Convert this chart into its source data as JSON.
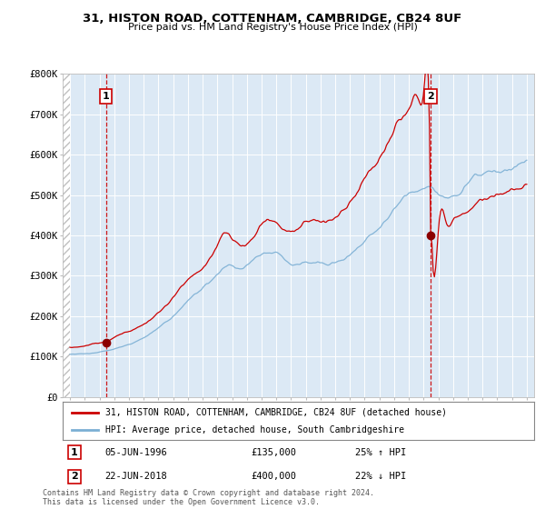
{
  "title_line1": "31, HISTON ROAD, COTTENHAM, CAMBRIDGE, CB24 8UF",
  "title_line2": "Price paid vs. HM Land Registry's House Price Index (HPI)",
  "bg_color": "#dce9f5",
  "line1_color": "#cc0000",
  "line2_color": "#7bafd4",
  "marker_color": "#8b0000",
  "vline_color": "#cc0000",
  "sale1_x": 1996.43,
  "sale1_y": 135000,
  "sale2_x": 2018.47,
  "sale2_y": 400000,
  "legend_line1": "31, HISTON ROAD, COTTENHAM, CAMBRIDGE, CB24 8UF (detached house)",
  "legend_line2": "HPI: Average price, detached house, South Cambridgeshire",
  "note1_label": "1",
  "note1_date": "05-JUN-1996",
  "note1_price": "£135,000",
  "note1_hpi": "25% ↑ HPI",
  "note2_label": "2",
  "note2_date": "22-JUN-2018",
  "note2_price": "£400,000",
  "note2_hpi": "22% ↓ HPI",
  "footer": "Contains HM Land Registry data © Crown copyright and database right 2024.\nThis data is licensed under the Open Government Licence v3.0.",
  "ylim_max": 800000,
  "yticks": [
    0,
    100000,
    200000,
    300000,
    400000,
    500000,
    600000,
    700000,
    800000
  ],
  "ytick_labels": [
    "£0",
    "£100K",
    "£200K",
    "£300K",
    "£400K",
    "£500K",
    "£600K",
    "£700K",
    "£800K"
  ],
  "xlim_min": 1993.5,
  "xlim_max": 2025.5,
  "hatch_end": 1994.0
}
